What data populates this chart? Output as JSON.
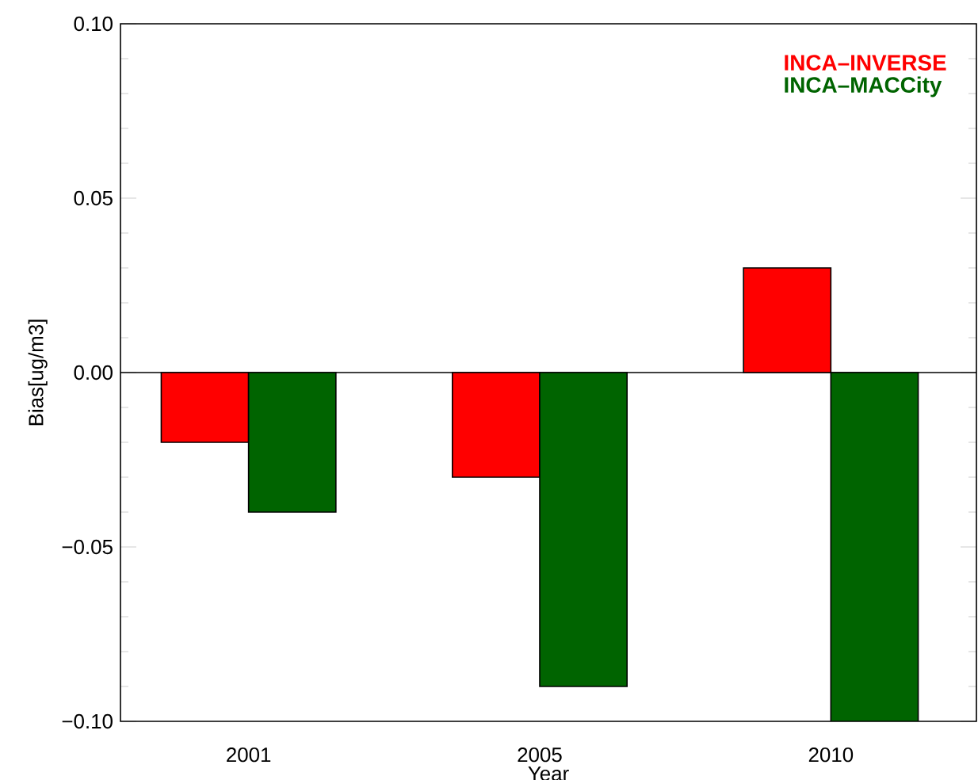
{
  "chart_data": {
    "type": "bar",
    "xlabel": "Year",
    "ylabel": "Bias[ug/m3]",
    "categories": [
      "2001",
      "2005",
      "2010"
    ],
    "series": [
      {
        "name": "INCA–INVERSE",
        "color": "#ff0000",
        "values": [
          -0.02,
          -0.03,
          0.03
        ]
      },
      {
        "name": "INCA–MACCity",
        "color": "#006400",
        "values": [
          -0.04,
          -0.09,
          -0.1
        ]
      }
    ],
    "ylim": [
      -0.1,
      0.1
    ],
    "yticks": [
      {
        "value": -0.1,
        "label": "−0.10"
      },
      {
        "value": -0.05,
        "label": "−0.05"
      },
      {
        "value": 0,
        "label": "0.00"
      },
      {
        "value": 0.05,
        "label": "0.05"
      },
      {
        "value": 0.1,
        "label": "0.10"
      }
    ],
    "legend": "top right",
    "ref_lines": [
      {
        "axis": "y",
        "value": 0,
        "color": "#000000"
      }
    ]
  }
}
